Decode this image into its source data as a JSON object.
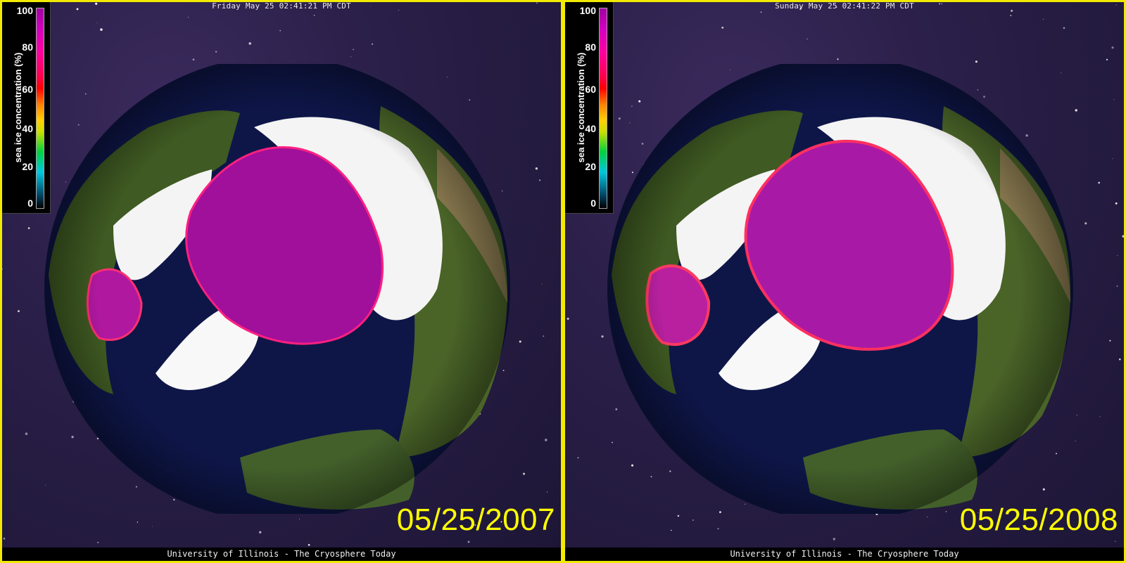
{
  "panels": [
    {
      "header_time": "Friday May 25 02:41:21 PM CDT",
      "date_label": "05/25/2007",
      "footer": "University of Illinois - The Cryosphere Today"
    },
    {
      "header_time": "Sunday May 25 02:41:22 PM CDT",
      "date_label": "05/25/2008",
      "footer": "University of Illinois - The Cryosphere Today"
    }
  ],
  "legend": {
    "title": "sea ice concentration (%)",
    "ticks": [
      "100",
      "80",
      "60",
      "40",
      "20",
      "0"
    ]
  },
  "colors": {
    "border": "#f2ea00",
    "date_text": "#ffff00",
    "ocean": "#0e1648",
    "land": "#3f5a22",
    "snow": "#f4f4f4",
    "ice_high": "#a0109a"
  }
}
